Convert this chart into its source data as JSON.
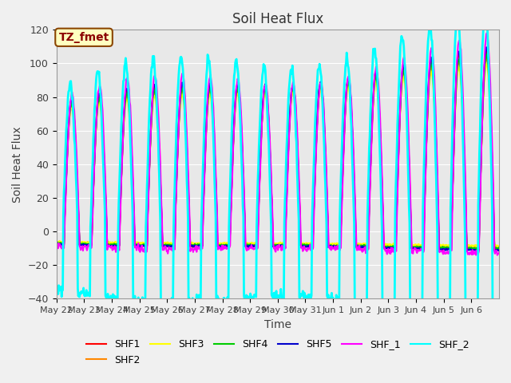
{
  "title": "Soil Heat Flux",
  "xlabel": "Time",
  "ylabel": "Soil Heat Flux",
  "ylim": [
    -40,
    120
  ],
  "annotation_text": "TZ_fmet",
  "annotation_facecolor": "#FFFFC0",
  "annotation_edgecolor": "#8B4500",
  "annotation_textcolor": "#8B0000",
  "series": {
    "SHF1": {
      "color": "#FF0000",
      "lw": 1.5
    },
    "SHF2": {
      "color": "#FF8800",
      "lw": 1.5
    },
    "SHF3": {
      "color": "#FFFF00",
      "lw": 1.5
    },
    "SHF4": {
      "color": "#00CC00",
      "lw": 1.5
    },
    "SHF5": {
      "color": "#0000CC",
      "lw": 1.5
    },
    "SHF_1": {
      "color": "#FF00FF",
      "lw": 1.5
    },
    "SHF_2": {
      "color": "#00FFFF",
      "lw": 2.0
    }
  },
  "background_color": "#E8E8E8",
  "tick_label_color": "#404040",
  "grid_color": "#FFFFFF",
  "n_days": 16,
  "start_day": 22,
  "start_month": "May",
  "x_tick_labels": [
    "May 22",
    "May 23",
    "May 24",
    "May 25",
    "May 26",
    "May 27",
    "May 28",
    "May 29",
    "May 30",
    "May 31",
    "Jun 1",
    "Jun 2",
    "Jun 3",
    "Jun 4",
    "Jun 5",
    "Jun 6"
  ],
  "yticks": [
    -40,
    -20,
    0,
    20,
    40,
    60,
    80,
    100,
    120
  ]
}
